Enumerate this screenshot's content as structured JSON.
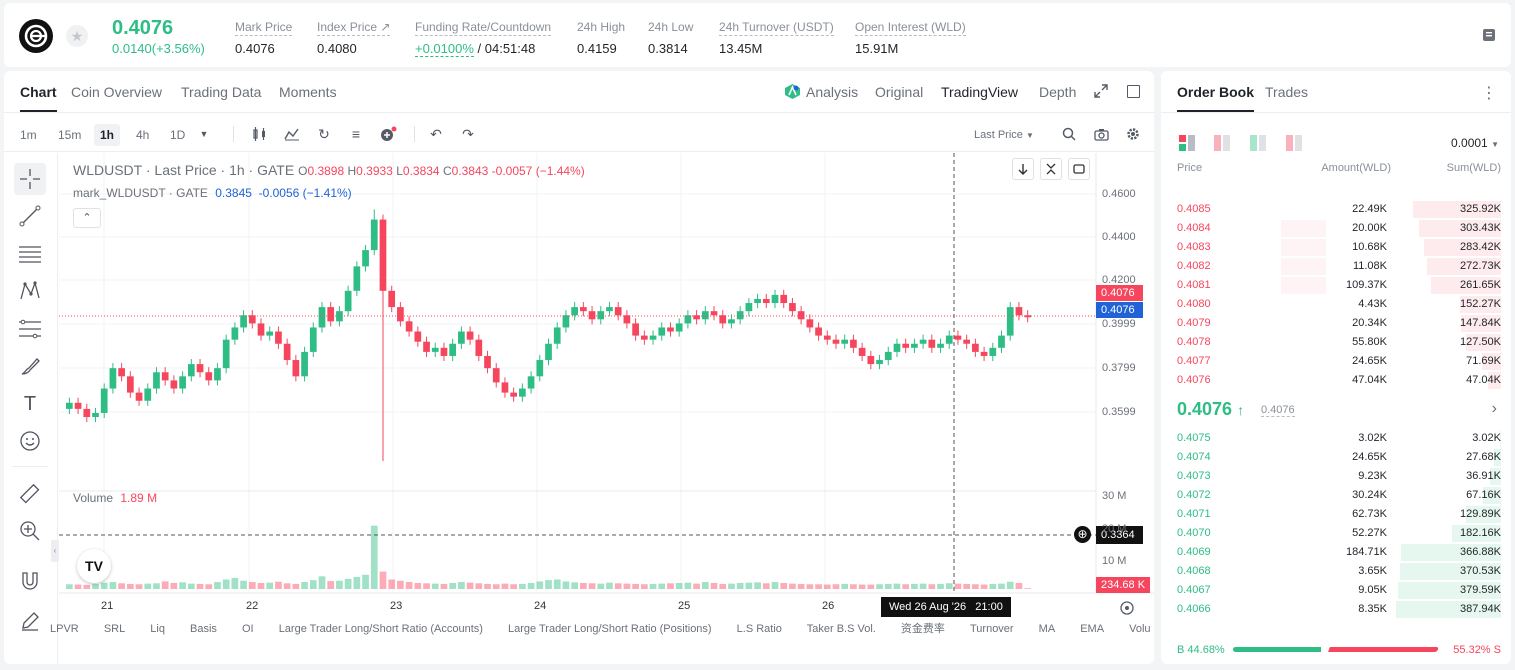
{
  "header": {
    "last_price": "0.4076",
    "change": "0.0140(+3.56%)",
    "stats": [
      {
        "label": "Mark Price",
        "value": "0.4076"
      },
      {
        "label": "Index Price ↗",
        "value": "0.4080"
      },
      {
        "label": "Funding Rate/Countdown",
        "value_green": "+0.0100%",
        "value": " / 04:51:48"
      },
      {
        "label": "24h High",
        "value": "0.4159"
      },
      {
        "label": "24h Low",
        "value": "0.3814"
      },
      {
        "label": "24h Turnover (USDT)",
        "value": "13.45M"
      },
      {
        "label": "Open Interest (WLD)",
        "value": "15.91M"
      }
    ]
  },
  "chart_tabs": [
    "Chart",
    "Coin Overview",
    "Trading Data",
    "Moments"
  ],
  "view_tabs": [
    "Analysis",
    "Original",
    "TradingView",
    "Depth"
  ],
  "timeframes": [
    "1m",
    "15m",
    "1h",
    "4h",
    "1D"
  ],
  "price_type": "Last Price",
  "legend": {
    "symbol": "WLDUSDT · Last Price · 1h · GATE",
    "o_label": "O",
    "o": "0.3898",
    "h_label": "H",
    "h": "0.3933",
    "l_label": "L",
    "l": "0.3834",
    "c_label": "C",
    "c": "0.3843",
    "chg": "-0.0057 (−1.44%)",
    "mark_label": "mark_WLDUSDT · GATE",
    "mark_vals": "0.3845  -0.0056 (−1.41%)"
  },
  "volume": {
    "label": "Volume",
    "value": "1.89 M",
    "current_tag": "234.68 K"
  },
  "price_axis": [
    "0.4600",
    "0.4400",
    "0.4200",
    "0.3999",
    "0.3799",
    "0.3599"
  ],
  "volume_axis": [
    "30 M",
    "20 M",
    "10 M"
  ],
  "price_tags": {
    "last": "0.4076",
    "mark": "0.4076",
    "crosshair": "0.3364"
  },
  "date_axis": [
    "21",
    "22",
    "23",
    "24",
    "25",
    "26"
  ],
  "crosshair_time": "Wed 26 Aug '26   21:00",
  "bottom_indicators": [
    "LPVR",
    "SRL",
    "Liq",
    "Basis",
    "OI",
    "Large Trader Long/Short Ratio (Accounts)",
    "Large Trader Long/Short Ratio (Positions)",
    "L.S Ratio",
    "Taker B.S Vol.",
    "资金费率",
    "Turnover",
    "MA",
    "EMA",
    "Volu"
  ],
  "chart_data": {
    "type": "candlestick",
    "y_axis_range": [
      0.3364,
      0.462
    ],
    "x_labels": [
      "21",
      "22",
      "23",
      "24",
      "25",
      "26"
    ],
    "last_price": 0.4076,
    "close_series": [
      0.365,
      0.362,
      0.358,
      0.36,
      0.372,
      0.382,
      0.378,
      0.37,
      0.366,
      0.372,
      0.38,
      0.376,
      0.372,
      0.378,
      0.384,
      0.38,
      0.376,
      0.382,
      0.396,
      0.402,
      0.408,
      0.404,
      0.398,
      0.4,
      0.394,
      0.386,
      0.378,
      0.39,
      0.402,
      0.412,
      0.405,
      0.41,
      0.42,
      0.432,
      0.44,
      0.455,
      0.42,
      0.412,
      0.405,
      0.4,
      0.395,
      0.39,
      0.392,
      0.388,
      0.394,
      0.4,
      0.396,
      0.388,
      0.382,
      0.375,
      0.37,
      0.368,
      0.372,
      0.378,
      0.386,
      0.394,
      0.402,
      0.408,
      0.412,
      0.41,
      0.406,
      0.41,
      0.412,
      0.408,
      0.404,
      0.398,
      0.396,
      0.398,
      0.402,
      0.4,
      0.404,
      0.408,
      0.406,
      0.41,
      0.408,
      0.404,
      0.406,
      0.41,
      0.414,
      0.416,
      0.414,
      0.418,
      0.414,
      0.41,
      0.406,
      0.402,
      0.398,
      0.396,
      0.394,
      0.396,
      0.392,
      0.388,
      0.384,
      0.386,
      0.39,
      0.394,
      0.392,
      0.394,
      0.396,
      0.392,
      0.394,
      0.398,
      0.396,
      0.394,
      0.39,
      0.388,
      0.392,
      0.398,
      0.412,
      0.408,
      0.407
    ],
    "volume_series_m": [
      1.5,
      1.4,
      1.3,
      1.6,
      2.0,
      2.2,
      1.8,
      1.6,
      1.5,
      1.7,
      1.8,
      2.4,
      1.9,
      2.1,
      1.7,
      1.6,
      1.5,
      2.2,
      3.0,
      3.5,
      2.6,
      2.2,
      1.9,
      2.0,
      2.3,
      1.8,
      1.6,
      2.2,
      2.8,
      4.0,
      2.5,
      2.6,
      3.2,
      3.8,
      4.5,
      20.0,
      5.5,
      3.0,
      2.6,
      2.2,
      1.9,
      1.8,
      1.7,
      1.6,
      1.9,
      2.2,
      2.0,
      1.8,
      1.6,
      1.5,
      1.7,
      1.5,
      1.6,
      1.9,
      2.4,
      2.8,
      3.0,
      2.4,
      2.1,
      1.9,
      1.8,
      1.7,
      2.0,
      1.8,
      1.7,
      1.6,
      1.5,
      1.6,
      1.7,
      1.8,
      1.9,
      2.0,
      1.7,
      2.2,
      1.9,
      1.6,
      1.7,
      1.9,
      2.0,
      2.1,
      1.8,
      2.2,
      1.9,
      1.7,
      1.6,
      1.5,
      1.5,
      1.4,
      1.5,
      1.6,
      1.5,
      1.4,
      1.4,
      1.5,
      1.6,
      1.7,
      1.5,
      1.6,
      1.7,
      1.5,
      1.6,
      1.8,
      1.7,
      1.6,
      1.5,
      1.4,
      1.6,
      1.7,
      2.3,
      1.9,
      0.23
    ]
  },
  "order_book": {
    "tabs": [
      "Order Book",
      "Trades"
    ],
    "precision": "0.0001",
    "headers": [
      "Price",
      "Amount(WLD)",
      "Sum(WLD)"
    ],
    "asks": [
      {
        "price": "0.4085",
        "amount": "22.49K",
        "sum": "325.92K",
        "amount_frac": 0,
        "sum_frac": 0.84
      },
      {
        "price": "0.4084",
        "amount": "20.00K",
        "sum": "303.43K",
        "amount_frac": 0.39,
        "sum_frac": 0.78
      },
      {
        "price": "0.4083",
        "amount": "10.68K",
        "sum": "283.42K",
        "amount_frac": 0.39,
        "sum_frac": 0.73
      },
      {
        "price": "0.4082",
        "amount": "11.08K",
        "sum": "272.73K",
        "amount_frac": 0.39,
        "sum_frac": 0.7
      },
      {
        "price": "0.4081",
        "amount": "109.37K",
        "sum": "261.65K",
        "amount_frac": 0.39,
        "sum_frac": 0.67
      },
      {
        "price": "0.4080",
        "amount": "4.43K",
        "sum": "152.27K",
        "amount_frac": 0,
        "sum_frac": 0.39
      },
      {
        "price": "0.4079",
        "amount": "20.34K",
        "sum": "147.84K",
        "amount_frac": 0,
        "sum_frac": 0.38
      },
      {
        "price": "0.4078",
        "amount": "55.80K",
        "sum": "127.50K",
        "amount_frac": 0,
        "sum_frac": 0.33
      },
      {
        "price": "0.4077",
        "amount": "24.65K",
        "sum": "71.69K",
        "amount_frac": 0,
        "sum_frac": 0.18
      },
      {
        "price": "0.4076",
        "amount": "47.04K",
        "sum": "47.04K",
        "amount_frac": 0,
        "sum_frac": 0.12
      }
    ],
    "mid_price": "0.4076",
    "mid_mark": "0.4076",
    "bids": [
      {
        "price": "0.4075",
        "amount": "3.02K",
        "sum": "3.02K",
        "sum_frac": 0.01
      },
      {
        "price": "0.4074",
        "amount": "24.65K",
        "sum": "27.68K",
        "sum_frac": 0.07
      },
      {
        "price": "0.4073",
        "amount": "9.23K",
        "sum": "36.91K",
        "sum_frac": 0.1
      },
      {
        "price": "0.4072",
        "amount": "30.24K",
        "sum": "67.16K",
        "sum_frac": 0.17
      },
      {
        "price": "0.4071",
        "amount": "62.73K",
        "sum": "129.89K",
        "sum_frac": 0.33
      },
      {
        "price": "0.4070",
        "amount": "52.27K",
        "sum": "182.16K",
        "sum_frac": 0.47
      },
      {
        "price": "0.4069",
        "amount": "184.71K",
        "sum": "366.88K",
        "sum_frac": 0.95
      },
      {
        "price": "0.4068",
        "amount": "3.65K",
        "sum": "370.53K",
        "sum_frac": 0.96
      },
      {
        "price": "0.4067",
        "amount": "9.05K",
        "sum": "379.59K",
        "sum_frac": 0.98
      },
      {
        "price": "0.4066",
        "amount": "8.35K",
        "sum": "387.94K",
        "sum_frac": 1.0
      }
    ],
    "buy_label": "B",
    "buy_pct": "44.68%",
    "buy_frac": 0.4468,
    "sell_label": "S",
    "sell_pct": "55.32%"
  },
  "colors": {
    "up": "#2ebd85",
    "down": "#f6465d",
    "mark": "#1f63d6"
  }
}
